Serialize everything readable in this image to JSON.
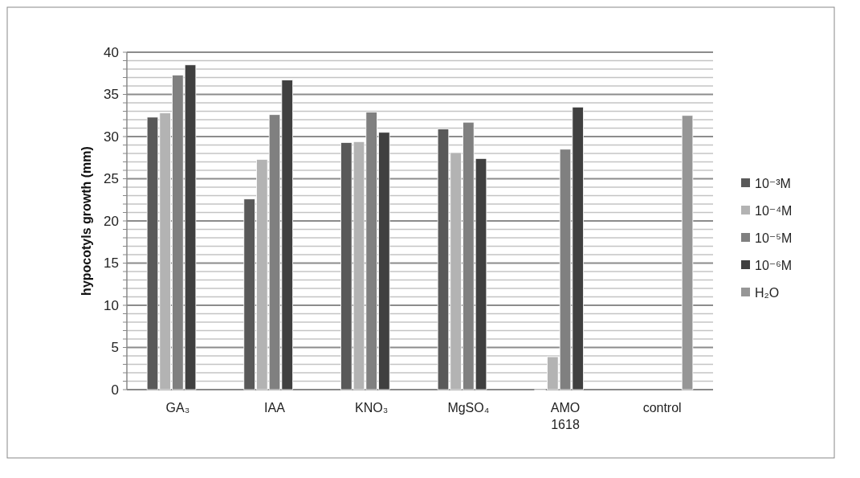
{
  "chart_data": {
    "type": "bar",
    "ylabel": "hypocotyls growth (mm)",
    "categories": [
      "GA₃",
      "IAA",
      "KNO₃",
      "MgSO₄",
      "AMO 1618",
      "control"
    ],
    "series": [
      {
        "name": "10⁻³M",
        "color": "#595959",
        "values": [
          32.3,
          22.6,
          29.3,
          30.9,
          0,
          null
        ]
      },
      {
        "name": "10⁻⁴M",
        "color": "#b3b3b3",
        "values": [
          32.8,
          27.3,
          29.4,
          28.1,
          3.9,
          null
        ]
      },
      {
        "name": "10⁻⁵M",
        "color": "#808080",
        "values": [
          37.3,
          32.6,
          32.9,
          31.7,
          28.5,
          null
        ]
      },
      {
        "name": "10⁻⁶M",
        "color": "#404040",
        "values": [
          38.5,
          36.7,
          30.5,
          27.4,
          33.5,
          null
        ]
      },
      {
        "name": "H₂O",
        "color": "#969696",
        "values": [
          null,
          null,
          null,
          null,
          null,
          32.5
        ]
      }
    ],
    "ylim": [
      0,
      40
    ],
    "yticks": [
      0,
      {
        "value": 1,
        "label": null
      },
      {
        "value": 2,
        "label": null
      },
      {
        "value": 3,
        "label": null
      },
      {
        "value": 4,
        "label": null
      },
      5,
      {
        "value": 6,
        "label": null
      },
      {
        "value": 7,
        "label": null
      },
      {
        "value": 8,
        "label": null
      },
      {
        "value": 9,
        "label": null
      },
      10,
      {
        "value": 11,
        "label": null
      },
      {
        "value": 12,
        "label": null
      },
      {
        "value": 13,
        "label": null
      },
      {
        "value": 14,
        "label": null
      },
      15,
      {
        "value": 16,
        "label": null
      },
      {
        "value": 17,
        "label": null
      },
      {
        "value": 18,
        "label": null
      },
      {
        "value": 19,
        "label": null
      },
      20,
      {
        "value": 21,
        "label": null
      },
      {
        "value": 22,
        "label": null
      },
      {
        "value": 23,
        "label": null
      },
      {
        "value": 24,
        "label": null
      },
      25,
      {
        "value": 26,
        "label": null
      },
      {
        "value": 27,
        "label": null
      },
      {
        "value": 28,
        "label": null
      },
      {
        "value": 29,
        "label": null
      },
      30,
      {
        "value": 31,
        "label": null
      },
      {
        "value": 32,
        "label": null
      },
      {
        "value": 33,
        "label": null
      },
      {
        "value": 34,
        "label": null
      },
      35,
      {
        "value": 36,
        "label": null
      },
      {
        "value": 37,
        "label": null
      },
      {
        "value": 38,
        "label": null
      },
      {
        "value": 39,
        "label": null
      },
      40
    ],
    "grid": true,
    "legend": "right"
  }
}
